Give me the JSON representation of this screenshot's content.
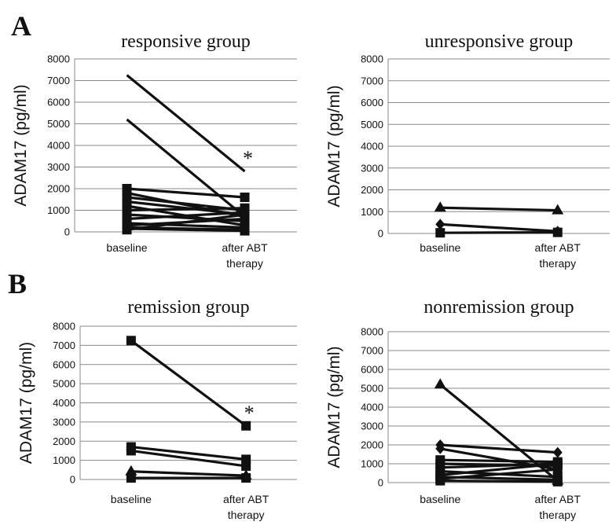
{
  "panels": [
    {
      "label": "A"
    },
    {
      "label": "B"
    }
  ],
  "chart_data": [
    {
      "type": "line",
      "title": "responsive group",
      "ylabel": "ADAM17  (pg/ml)",
      "categories": [
        "baseline",
        "after ABT therapy"
      ],
      "ylim": [
        0,
        8000
      ],
      "yticks": [
        "0",
        "1000",
        "2000",
        "3000",
        "4000",
        "5000",
        "6000",
        "7000",
        "8000"
      ],
      "grid": true,
      "annotation": {
        "text": "*",
        "category_index": 1,
        "value": 2800
      },
      "series": [
        {
          "values": [
            7250,
            2800
          ],
          "marker": "none"
        },
        {
          "values": [
            5200,
            700
          ],
          "marker": "none"
        },
        {
          "values": [
            2000,
            1600
          ],
          "marker": "square"
        },
        {
          "values": [
            1800,
            700
          ],
          "marker": "square"
        },
        {
          "values": [
            1600,
            1000
          ],
          "marker": "square"
        },
        {
          "values": [
            1400,
            800
          ],
          "marker": "square"
        },
        {
          "values": [
            1200,
            300
          ],
          "marker": "square"
        },
        {
          "values": [
            1000,
            1100
          ],
          "marker": "square"
        },
        {
          "values": [
            800,
            500
          ],
          "marker": "square"
        },
        {
          "values": [
            600,
            900
          ],
          "marker": "square"
        },
        {
          "values": [
            400,
            200
          ],
          "marker": "square"
        },
        {
          "values": [
            300,
            600
          ],
          "marker": "square"
        },
        {
          "values": [
            200,
            100
          ],
          "marker": "square"
        },
        {
          "values": [
            100,
            800
          ],
          "marker": "square"
        },
        {
          "values": [
            150,
            50
          ],
          "marker": "square"
        }
      ]
    },
    {
      "type": "line",
      "title": "unresponsive group",
      "ylabel": "ADAM17  (pg/ml)",
      "categories": [
        "baseline",
        "after ABT therapy"
      ],
      "ylim": [
        0,
        8000
      ],
      "yticks": [
        "0",
        "1000",
        "2000",
        "3000",
        "4000",
        "5000",
        "6000",
        "7000",
        "8000"
      ],
      "grid": true,
      "series": [
        {
          "values": [
            1180,
            1060
          ],
          "marker": "triangle"
        },
        {
          "values": [
            420,
            100
          ],
          "marker": "diamond"
        },
        {
          "values": [
            30,
            50
          ],
          "marker": "square"
        }
      ]
    },
    {
      "type": "line",
      "title": "remission group",
      "ylabel": "ADAM17  (pg/ml)",
      "categories": [
        "baseline",
        "after ABT therapy"
      ],
      "ylim": [
        0,
        8000
      ],
      "yticks": [
        "0",
        "1000",
        "2000",
        "3000",
        "4000",
        "5000",
        "6000",
        "7000",
        "8000"
      ],
      "grid": true,
      "annotation": {
        "text": "*",
        "category_index": 1,
        "value": 2800
      },
      "series": [
        {
          "values": [
            7250,
            2800
          ],
          "marker": "square"
        },
        {
          "values": [
            1700,
            1050
          ],
          "marker": "square"
        },
        {
          "values": [
            1500,
            700
          ],
          "marker": "square"
        },
        {
          "values": [
            420,
            200
          ],
          "marker": "triangle"
        },
        {
          "values": [
            80,
            80
          ],
          "marker": "square"
        }
      ]
    },
    {
      "type": "line",
      "title": "nonremission group",
      "ylabel": "ADAM17  (pg/ml)",
      "categories": [
        "baseline",
        "after ABT therapy"
      ],
      "ylim": [
        0,
        8000
      ],
      "yticks": [
        "0",
        "1000",
        "2000",
        "3000",
        "4000",
        "5000",
        "6000",
        "7000",
        "8000"
      ],
      "grid": true,
      "series": [
        {
          "values": [
            5200,
            100
          ],
          "marker": "triangle"
        },
        {
          "values": [
            2000,
            1600
          ],
          "marker": "diamond"
        },
        {
          "values": [
            1800,
            700
          ],
          "marker": "diamond"
        },
        {
          "values": [
            1200,
            1100
          ],
          "marker": "square"
        },
        {
          "values": [
            1000,
            900
          ],
          "marker": "square"
        },
        {
          "values": [
            800,
            1000
          ],
          "marker": "square"
        },
        {
          "values": [
            600,
            300
          ],
          "marker": "square"
        },
        {
          "values": [
            400,
            1000
          ],
          "marker": "square"
        },
        {
          "values": [
            300,
            150
          ],
          "marker": "square"
        },
        {
          "values": [
            200,
            700
          ],
          "marker": "square"
        },
        {
          "values": [
            100,
            50
          ],
          "marker": "square"
        }
      ]
    }
  ]
}
